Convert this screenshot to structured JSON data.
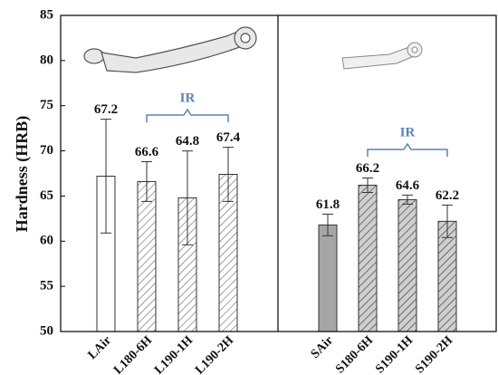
{
  "chart_data": {
    "type": "bar",
    "y_label": "Hardness (HRB)",
    "categories": [
      "LAir",
      "L180-6H",
      "L190-1H",
      "L190-2H",
      "SAir",
      "S180-6H",
      "S190-1H",
      "S190-2H"
    ],
    "values": [
      67.2,
      66.6,
      64.8,
      67.4,
      61.8,
      66.2,
      64.6,
      62.2
    ],
    "errors": [
      6.3,
      2.2,
      5.2,
      3.0,
      1.2,
      0.8,
      0.5,
      1.8
    ],
    "bar_fills": [
      "#ffffff",
      "hatch",
      "hatch",
      "hatch",
      "#a6a6a6",
      "hatch-gray",
      "hatch-gray",
      "hatch-gray"
    ],
    "annotations": [
      "IR",
      "IR"
    ],
    "annotation_color": "#5b82b8",
    "ylim": [
      50,
      85
    ],
    "yticks": [
      50,
      55,
      60,
      65,
      70,
      75,
      80,
      85
    ]
  }
}
